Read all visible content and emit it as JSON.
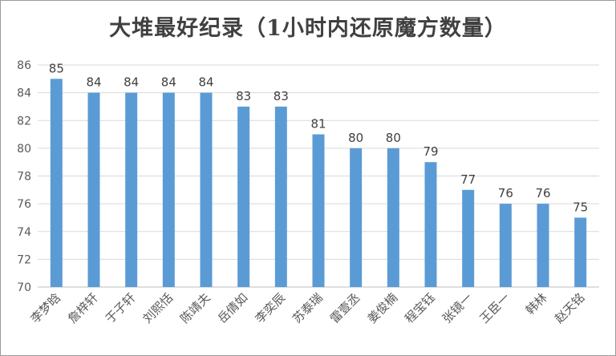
{
  "chart_data": {
    "type": "bar",
    "title": "大堆最好纪录（1小时内还原魔方数量）",
    "xlabel": "",
    "ylabel": "",
    "ylim": [
      70,
      86
    ],
    "yticks": [
      70,
      72,
      74,
      76,
      78,
      80,
      82,
      84,
      86
    ],
    "grid": true,
    "bar_color": "#5b9bd5",
    "categories": [
      "李梦晗",
      "詹梓轩",
      "于子轩",
      "刘熙恬",
      "陈靖夫",
      "岳倩如",
      "李奕辰",
      "苏泰瑞",
      "雷壹丞",
      "姜俊楠",
      "程宝钰",
      "张镜一",
      "王臣一",
      "韩林",
      "赵天铭"
    ],
    "values": [
      85,
      84,
      84,
      84,
      84,
      83,
      83,
      81,
      80,
      80,
      79,
      77,
      76,
      76,
      75
    ]
  }
}
